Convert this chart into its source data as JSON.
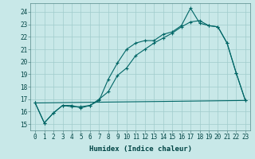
{
  "title": "",
  "xlabel": "Humidex (Indice chaleur)",
  "bg_color": "#c8e8e8",
  "line_color": "#006666",
  "xlim": [
    -0.5,
    23.5
  ],
  "ylim": [
    14.5,
    24.7
  ],
  "yticks": [
    15,
    16,
    17,
    18,
    19,
    20,
    21,
    22,
    23,
    24
  ],
  "xticks": [
    0,
    1,
    2,
    3,
    4,
    5,
    6,
    7,
    8,
    9,
    10,
    11,
    12,
    13,
    14,
    15,
    16,
    17,
    18,
    19,
    20,
    21,
    22,
    23
  ],
  "line1_x": [
    0,
    1,
    2,
    3,
    4,
    5,
    6,
    7,
    8,
    9,
    10,
    11,
    12,
    13,
    14,
    15,
    16,
    17,
    18,
    19,
    20,
    21,
    22,
    23
  ],
  "line1_y": [
    16.7,
    15.1,
    15.9,
    16.5,
    16.5,
    16.3,
    16.5,
    16.9,
    18.6,
    19.9,
    21.0,
    21.5,
    21.7,
    21.7,
    22.2,
    22.4,
    22.9,
    24.3,
    23.1,
    22.9,
    22.8,
    21.5,
    19.1,
    16.9
  ],
  "line2_x": [
    0,
    1,
    2,
    3,
    4,
    5,
    6,
    7,
    8,
    9,
    10,
    11,
    12,
    13,
    14,
    15,
    16,
    17,
    18,
    19,
    20,
    21,
    22,
    23
  ],
  "line2_y": [
    16.7,
    15.1,
    15.9,
    16.5,
    16.4,
    16.4,
    16.5,
    17.0,
    17.6,
    18.9,
    19.5,
    20.5,
    21.0,
    21.5,
    21.9,
    22.3,
    22.8,
    23.2,
    23.3,
    22.9,
    22.8,
    21.5,
    19.1,
    16.9
  ],
  "line3_x": [
    0,
    23
  ],
  "line3_y": [
    16.7,
    16.9
  ],
  "grid_color": "#a0cccc",
  "label_fontsize": 6.5,
  "tick_fontsize": 5.5
}
